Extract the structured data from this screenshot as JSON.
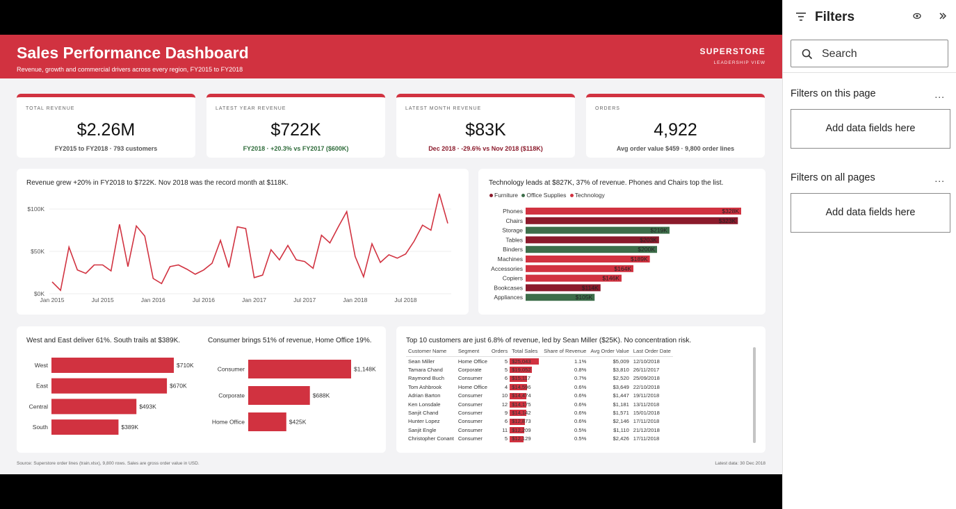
{
  "dashboard": {
    "title": "Sales Performance Dashboard",
    "subtitle": "Revenue, growth and commercial drivers across every region, FY2015 to FY2018",
    "brand": "SUPERSTORE",
    "brand_sub": "LEADERSHIP VIEW",
    "footer_left": "Source: Superstore order lines (train.xlsx), 9,800 rows. Sales are gross order value in USD.",
    "footer_right": "Latest data: 30 Dec 2018"
  },
  "kpis": [
    {
      "label": "TOTAL REVENUE",
      "value": "$2.26M",
      "sub": "FY2015 to FY2018 · 793 customers",
      "sub_color": "#555555"
    },
    {
      "label": "LATEST YEAR REVENUE",
      "value": "$722K",
      "sub": "FY2018 · +20.3% vs FY2017 ($600K)",
      "sub_color": "#2e6b3a"
    },
    {
      "label": "LATEST MONTH REVENUE",
      "value": "$83K",
      "sub": "Dec 2018 · -29.6% vs Nov 2018 ($118K)",
      "sub_color": "#8b1a2b"
    },
    {
      "label": "ORDERS",
      "value": "4,922",
      "sub": "Avg order value $459 · 9,800 order lines",
      "sub_color": "#555555"
    }
  ],
  "colors": {
    "accent": "#d13240",
    "furniture": "#8b1a2b",
    "office_supplies": "#3d6e4a",
    "technology": "#d13240"
  },
  "chart_data": [
    {
      "type": "line",
      "title": "Revenue grew +20% in FY2018 to $722K. Nov 2018 was the record month at $118K.",
      "x": [
        "Jan 2015",
        "Feb 2015",
        "Mar 2015",
        "Apr 2015",
        "May 2015",
        "Jun 2015",
        "Jul 2015",
        "Aug 2015",
        "Sep 2015",
        "Oct 2015",
        "Nov 2015",
        "Dec 2015",
        "Jan 2016",
        "Feb 2016",
        "Mar 2016",
        "Apr 2016",
        "May 2016",
        "Jun 2016",
        "Jul 2016",
        "Aug 2016",
        "Sep 2016",
        "Oct 2016",
        "Nov 2016",
        "Dec 2016",
        "Jan 2017",
        "Feb 2017",
        "Mar 2017",
        "Apr 2017",
        "May 2017",
        "Jun 2017",
        "Jul 2017",
        "Aug 2017",
        "Sep 2017",
        "Oct 2017",
        "Nov 2017",
        "Dec 2017",
        "Jan 2018",
        "Feb 2018",
        "Mar 2018",
        "Apr 2018",
        "May 2018",
        "Jun 2018",
        "Jul 2018",
        "Aug 2018",
        "Sep 2018",
        "Oct 2018",
        "Nov 2018",
        "Dec 2018"
      ],
      "values": [
        14,
        4,
        55,
        28,
        24,
        34,
        34,
        27,
        82,
        32,
        80,
        68,
        18,
        12,
        32,
        34,
        29,
        23,
        28,
        36,
        63,
        31,
        79,
        77,
        19,
        22,
        52,
        40,
        57,
        40,
        38,
        30,
        69,
        60,
        79,
        97,
        44,
        20,
        59,
        37,
        46,
        42,
        47,
        62,
        81,
        75,
        118,
        83
      ],
      "x_ticks": [
        "Jan 2015",
        "Jul 2015",
        "Jan 2016",
        "Jul 2016",
        "Jan 2017",
        "Jul 2017",
        "Jan 2018",
        "Jul 2018"
      ],
      "y_ticks": [
        "$0K",
        "$50K",
        "$100K"
      ],
      "ylim": [
        0,
        100
      ],
      "unit": "$K",
      "grid": true
    },
    {
      "type": "bar",
      "orientation": "horizontal",
      "title": "Technology leads at $827K, 37% of revenue. Phones and Chairs top the list.",
      "legend": [
        "Furniture",
        "Office Supplies",
        "Technology"
      ],
      "legend_position": "top-left",
      "categories": [
        "Phones",
        "Chairs",
        "Storage",
        "Tables",
        "Binders",
        "Machines",
        "Accessories",
        "Copiers",
        "Bookcases",
        "Appliances"
      ],
      "values": [
        328,
        323,
        219,
        203,
        200,
        189,
        164,
        146,
        114,
        105
      ],
      "labels": [
        "$328K",
        "$323K",
        "$219K",
        "$203K",
        "$200K",
        "$189K",
        "$164K",
        "$146K",
        "$114K",
        "$105K"
      ],
      "groups": [
        "Technology",
        "Furniture",
        "Office Supplies",
        "Furniture",
        "Office Supplies",
        "Technology",
        "Technology",
        "Technology",
        "Furniture",
        "Office Supplies"
      ],
      "unit": "$K"
    },
    {
      "type": "bar",
      "orientation": "horizontal",
      "title": "West and East deliver 61%. South trails at $389K.",
      "categories": [
        "West",
        "East",
        "Central",
        "South"
      ],
      "values": [
        710,
        670,
        493,
        389
      ],
      "labels": [
        "$710K",
        "$670K",
        "$493K",
        "$389K"
      ],
      "unit": "$K"
    },
    {
      "type": "bar",
      "orientation": "horizontal",
      "title": "Consumer brings 51% of revenue, Home Office 19%.",
      "categories": [
        "Consumer",
        "Corporate",
        "Home Office"
      ],
      "values": [
        1148,
        688,
        425
      ],
      "labels": [
        "$1,148K",
        "$688K",
        "$425K"
      ],
      "unit": "$K"
    },
    {
      "type": "table",
      "title": "Top 10 customers are just 6.8% of revenue, led by Sean Miller ($25K). No concentration risk.",
      "columns": [
        "Customer Name",
        "Segment",
        "Orders",
        "Total Sales",
        "Share of Revenue",
        "Avg Order Value",
        "Last Order Date"
      ],
      "rows": [
        [
          "Sean Miller",
          "Home Office",
          "5",
          "$25,043",
          "1.1%",
          "$5,009",
          "12/10/2018"
        ],
        [
          "Tamara Chand",
          "Corporate",
          "5",
          "$19,052",
          "0.8%",
          "$3,810",
          "26/11/2017"
        ],
        [
          "Raymond Buch",
          "Consumer",
          "6",
          "$15,117",
          "0.7%",
          "$2,520",
          "25/09/2018"
        ],
        [
          "Tom Ashbrook",
          "Home Office",
          "4",
          "$14,596",
          "0.6%",
          "$3,649",
          "22/10/2018"
        ],
        [
          "Adrian Barton",
          "Consumer",
          "10",
          "$14,474",
          "0.6%",
          "$1,447",
          "19/11/2018"
        ],
        [
          "Ken Lonsdale",
          "Consumer",
          "12",
          "$14,175",
          "0.6%",
          "$1,181",
          "13/11/2018"
        ],
        [
          "Sanjit Chand",
          "Consumer",
          "9",
          "$14,142",
          "0.6%",
          "$1,571",
          "15/01/2018"
        ],
        [
          "Hunter Lopez",
          "Consumer",
          "6",
          "$12,873",
          "0.6%",
          "$2,146",
          "17/11/2018"
        ],
        [
          "Sanjit Engle",
          "Consumer",
          "11",
          "$12,209",
          "0.5%",
          "$1,110",
          "21/12/2018"
        ],
        [
          "Christopher Conant",
          "Consumer",
          "5",
          "$12,129",
          "0.5%",
          "$2,426",
          "17/11/2018"
        ]
      ],
      "sales_values": [
        25043,
        19052,
        15117,
        14596,
        14474,
        14175,
        14142,
        12873,
        12209,
        12129
      ]
    }
  ],
  "filters_pane": {
    "title": "Filters",
    "icons": [
      "filter-icon",
      "eye-icon",
      "collapse-icon",
      "search-icon"
    ],
    "search_placeholder": "Search",
    "section_page": "Filters on this page",
    "section_all": "Filters on all pages",
    "more": "...",
    "drop_hint": "Add data fields here"
  }
}
